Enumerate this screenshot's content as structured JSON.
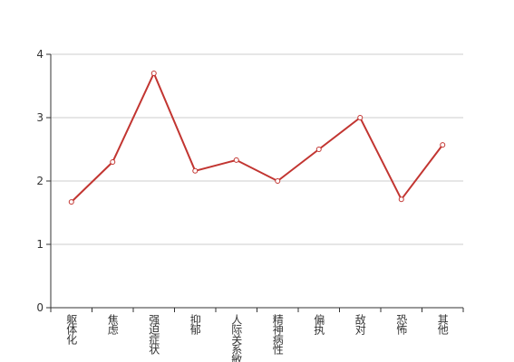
{
  "chart_data": {
    "type": "line",
    "categories": [
      "躯体化",
      "焦虑",
      "强迫症状",
      "抑郁",
      "人际关系敏感",
      "精神病性",
      "偏执",
      "敌对",
      "恐怖",
      "其他"
    ],
    "series": [
      {
        "color": "#c23531",
        "values": [
          1.67,
          2.3,
          3.7,
          2.16,
          2.33,
          2.0,
          2.5,
          3.0,
          1.71,
          2.57
        ]
      }
    ],
    "ylim": [
      0,
      4
    ],
    "yticks": [
      0,
      1,
      2,
      3,
      4
    ],
    "grid": true
  }
}
